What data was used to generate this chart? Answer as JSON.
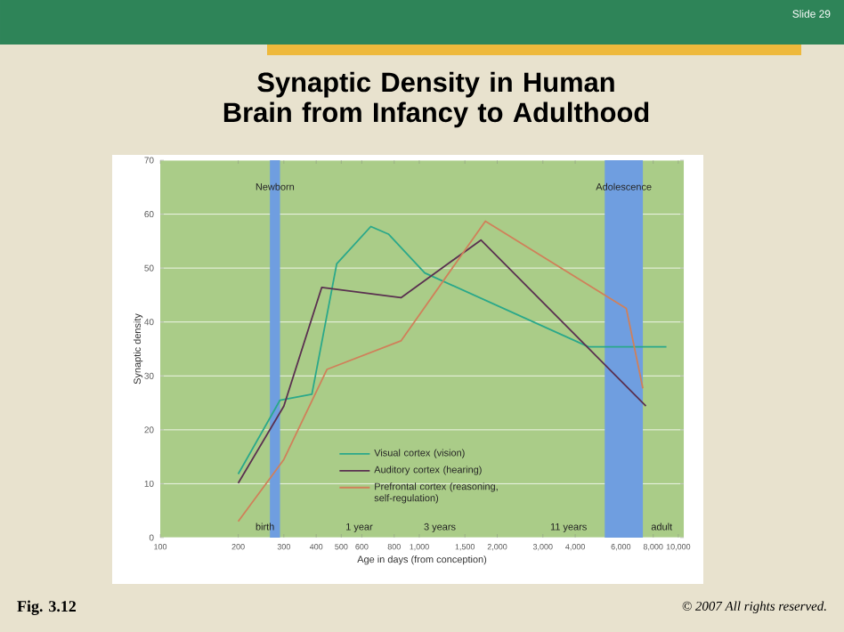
{
  "chart_data": {
    "type": "line",
    "title": "Synaptic Density in Human Brain from Infancy to Adulthood",
    "xlabel": "Age in days (from conception)",
    "ylabel": "Synaptic density",
    "log": "x",
    "grid": "y",
    "legend": "bottom",
    "marker": "none",
    "line_style": "solid",
    "xlim": [
      100,
      10500
    ],
    "ylim": [
      0,
      70
    ],
    "xticks": [
      100,
      200,
      300,
      400,
      500,
      600,
      800,
      {
        "value": 1000,
        "label": "1,000"
      },
      {
        "value": 1500,
        "label": "1,500"
      },
      {
        "value": 2000,
        "label": "2,000"
      },
      {
        "value": 3000,
        "label": "3,000"
      },
      {
        "value": 4000,
        "label": "4,000"
      },
      {
        "value": 6000,
        "label": "6,000"
      },
      {
        "value": 8000,
        "label": "8,000"
      },
      {
        "value": 10000,
        "label": "10,000"
      }
    ],
    "yticks": [
      0,
      10,
      20,
      30,
      40,
      50,
      60,
      70
    ],
    "series": [
      {
        "name": "Visual cortex (vision)",
        "color": "#2aa88a",
        "x": [
          200,
          290,
          385,
          480,
          650,
          760,
          1050,
          4500,
          9000
        ],
        "values": [
          11.8,
          25.5,
          26.6,
          50.8,
          57.7,
          56.3,
          49.1,
          35.4,
          35.4
        ]
      },
      {
        "name": "Auditory cortex (hearing)",
        "color": "#5a3050",
        "x": [
          200,
          300,
          420,
          850,
          1730,
          7500
        ],
        "values": [
          10.1,
          24.4,
          46.4,
          44.5,
          55.2,
          24.4
        ]
      },
      {
        "name": "Prefrontal cortex (reasoning, self-regulation)",
        "color": "#d0805a",
        "x": [
          200,
          300,
          440,
          850,
          1800,
          6300,
          7300
        ],
        "values": [
          3.0,
          14.5,
          31.2,
          36.5,
          58.7,
          42.5,
          27.7
        ]
      }
    ],
    "bands": [
      {
        "axis": "x",
        "from": 265,
        "to": 290,
        "label": "Newborn",
        "color": "#6f9ee0"
      },
      {
        "axis": "x",
        "from": 5200,
        "to": 7300,
        "label": "Adolescence",
        "color": "#6f9ee0"
      }
    ],
    "annotations": [
      "Slide 29",
      "Fig. 3.12",
      "© 2007 All rights reserved.",
      "birth",
      "1 year",
      "3 years",
      "11 years",
      "adult"
    ]
  }
}
